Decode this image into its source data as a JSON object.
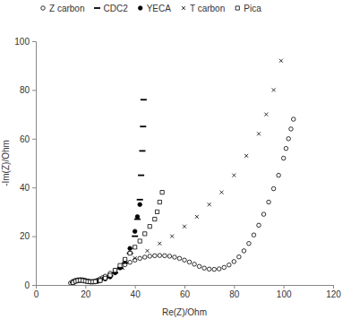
{
  "chart_data": {
    "type": "scatter",
    "x_label": "Re(Z)/Ohm",
    "y_label": "-Im(Z)/Ohm",
    "xlim": [
      0,
      120
    ],
    "xticks": [
      0,
      20,
      40,
      60,
      80,
      100,
      120
    ],
    "ylim": [
      0,
      100
    ],
    "yticks": [
      0,
      20,
      40,
      60,
      80,
      100
    ],
    "grid": false,
    "legend": "top",
    "series": [
      {
        "name": "Z carbon",
        "color": "#000000",
        "marker": "circle-open",
        "x": [
          14,
          15,
          16,
          17,
          18,
          19,
          20,
          21,
          22,
          23,
          24,
          25,
          26,
          27,
          28,
          30,
          32,
          34,
          36,
          38,
          40,
          42,
          44,
          46,
          48,
          50,
          52,
          54,
          56,
          58,
          60,
          62,
          64,
          66,
          68,
          70,
          72,
          74,
          76,
          78,
          80,
          82,
          84,
          86,
          88,
          90,
          92,
          94,
          96,
          98,
          100,
          101,
          102,
          103,
          104
        ],
        "values": [
          0.8,
          1.5,
          1.9,
          2.1,
          2.2,
          2.1,
          1.9,
          1.6,
          1.4,
          1.4,
          1.6,
          2,
          2.5,
          3,
          3.6,
          4.8,
          6,
          7.2,
          8.3,
          9.3,
          10.2,
          10.9,
          11.4,
          11.8,
          12,
          12.1,
          12,
          11.8,
          11.4,
          10.9,
          10.2,
          9.4,
          8.5,
          7.6,
          6.9,
          6.5,
          6.4,
          6.6,
          7.2,
          8.2,
          9.6,
          11.5,
          14,
          17,
          20.5,
          24.5,
          29,
          34,
          39.5,
          45,
          52,
          56,
          60,
          64,
          68
        ]
      },
      {
        "name": "CDC2",
        "color": "#000000",
        "marker": "dash",
        "x": [
          15,
          16,
          17,
          18,
          19,
          20,
          21,
          22,
          23,
          24,
          26,
          28,
          30,
          32,
          34,
          36,
          38,
          40,
          41,
          42,
          42.5,
          43,
          43.3,
          43.5
        ],
        "values": [
          1,
          1.6,
          2,
          2.1,
          2,
          1.8,
          1.5,
          1.3,
          1.3,
          1.5,
          2.2,
          3,
          3.8,
          5,
          6.8,
          9,
          13,
          20,
          27,
          35,
          45,
          55,
          65,
          76
        ]
      },
      {
        "name": "YECA",
        "color": "#000000",
        "marker": "circle",
        "x": [
          15,
          16,
          17,
          18,
          19,
          20,
          21,
          22,
          23,
          24,
          25,
          26,
          28,
          30,
          32,
          34,
          36,
          38,
          40,
          41,
          42
        ],
        "values": [
          1,
          1.5,
          1.8,
          1.9,
          1.8,
          1.6,
          1.4,
          1.2,
          1.2,
          1.3,
          1.5,
          1.8,
          2.5,
          3.3,
          5,
          7,
          10,
          15,
          22,
          28,
          33
        ]
      },
      {
        "name": "T carbon",
        "color": "#000000",
        "marker": "x",
        "x": [
          15,
          16,
          17,
          18,
          19,
          20,
          21,
          22,
          23,
          24,
          25,
          27,
          30,
          35,
          40,
          45,
          50,
          55,
          60,
          65,
          70,
          75,
          80,
          85,
          90,
          93,
          96,
          99
        ],
        "values": [
          1,
          1.5,
          1.8,
          1.9,
          1.8,
          1.6,
          1.4,
          1.3,
          1.3,
          1.4,
          1.6,
          2.5,
          4,
          7,
          11,
          14,
          17,
          20,
          24,
          28,
          33,
          38,
          45,
          53,
          62,
          70,
          80,
          92
        ]
      },
      {
        "name": "Pica",
        "color": "#000000",
        "marker": "square-open",
        "x": [
          15,
          16,
          17,
          18,
          19,
          20,
          21,
          22,
          23,
          24,
          26,
          28,
          30,
          32,
          34,
          36,
          38,
          40,
          42,
          44,
          46,
          48,
          49,
          50,
          51
        ],
        "values": [
          1,
          1.5,
          1.8,
          1.9,
          1.8,
          1.6,
          1.4,
          1.3,
          1.3,
          1.4,
          1.8,
          2.8,
          4,
          6,
          8,
          10.5,
          13,
          15.5,
          18,
          21,
          24,
          27,
          30,
          34,
          38
        ]
      }
    ]
  }
}
